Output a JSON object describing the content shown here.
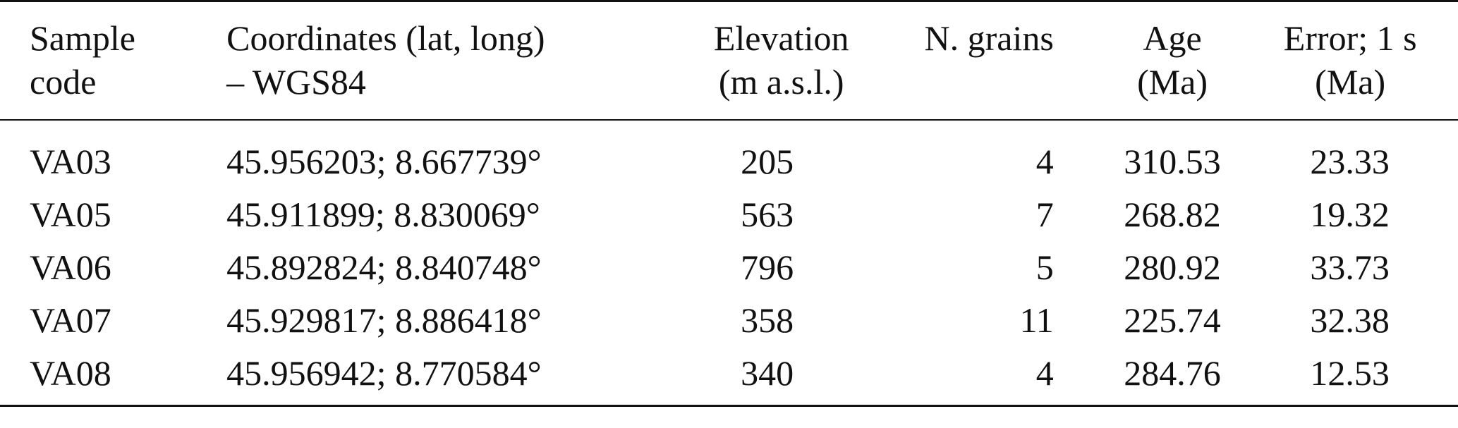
{
  "table": {
    "headers": {
      "sample_code": [
        "Sample",
        "code"
      ],
      "coordinates": [
        "Coordinates (lat, long)",
        "– WGS84"
      ],
      "elevation": [
        "Elevation",
        "(m a.s.l.)"
      ],
      "n_grains": [
        "N. grains",
        ""
      ],
      "age": [
        "Age",
        "(Ma)"
      ],
      "error": [
        "Error; 1 s",
        "(Ma)"
      ]
    },
    "rows": [
      {
        "code": "VA03",
        "coordinates": "45.956203; 8.667739°",
        "elevation": "205",
        "n_grains": "4",
        "age": "310.53",
        "error": "23.33"
      },
      {
        "code": "VA05",
        "coordinates": "45.911899; 8.830069°",
        "elevation": "563",
        "n_grains": "7",
        "age": "268.82",
        "error": "19.32"
      },
      {
        "code": "VA06",
        "coordinates": "45.892824; 8.840748°",
        "elevation": "796",
        "n_grains": "5",
        "age": "280.92",
        "error": "33.73"
      },
      {
        "code": "VA07",
        "coordinates": "45.929817; 8.886418°",
        "elevation": "358",
        "n_grains": "11",
        "age": "225.74",
        "error": "32.38"
      },
      {
        "code": "VA08",
        "coordinates": "45.956942; 8.770584°",
        "elevation": "340",
        "n_grains": "4",
        "age": "284.76",
        "error": "12.53"
      }
    ]
  }
}
